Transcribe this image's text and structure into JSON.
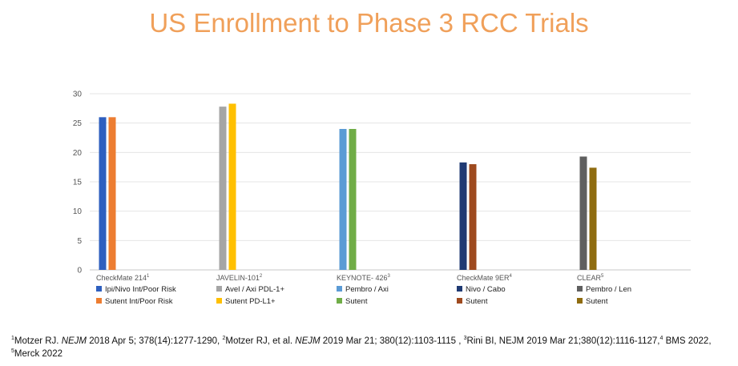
{
  "title": "US Enrollment to Phase 3 RCC Trials",
  "chart_data": {
    "type": "bar",
    "ylim": [
      0,
      30
    ],
    "yticks": [
      0,
      5,
      10,
      15,
      20,
      25,
      30
    ],
    "grid": true,
    "categories": [
      {
        "name": "CheckMate 214",
        "sup": "1"
      },
      {
        "name": "JAVELIN-101",
        "sup": "2"
      },
      {
        "name": "KEYNOTE- 426",
        "sup": "3"
      },
      {
        "name": "CheckMate 9ER",
        "sup": "4"
      },
      {
        "name": "CLEAR",
        "sup": "5"
      }
    ],
    "groups": [
      {
        "bars": [
          {
            "label": "Ipi/Nivo   Int/Poor Risk",
            "value": 26,
            "color": "#2e5fbf"
          },
          {
            "label": "Sutent   Int/Poor Risk",
            "value": 26,
            "color": "#ed7d31"
          }
        ]
      },
      {
        "bars": [
          {
            "label": "Avel / Axi   PDL-1+",
            "value": 27.8,
            "color": "#a5a5a5"
          },
          {
            "label": "Sutent      PD-L1+",
            "value": 28.3,
            "color": "#ffc000"
          }
        ]
      },
      {
        "bars": [
          {
            "label": "Pembro / Axi",
            "value": 24,
            "color": "#5b9bd5"
          },
          {
            "label": "Sutent",
            "value": 24,
            "color": "#70ad47"
          }
        ]
      },
      {
        "bars": [
          {
            "label": "Nivo / Cabo",
            "value": 18.3,
            "color": "#1f3a73"
          },
          {
            "label": "Sutent",
            "value": 18,
            "color": "#9e4a1f"
          }
        ]
      },
      {
        "bars": [
          {
            "label": "Pembro / Len",
            "value": 19.3,
            "color": "#5f5f5f"
          },
          {
            "label": "Sutent",
            "value": 17.4,
            "color": "#8f6c10"
          }
        ]
      }
    ]
  },
  "footnote": [
    {
      "t": "1",
      "sup": true
    },
    {
      "t": "Motzer RJ. "
    },
    {
      "t": "NEJM",
      "it": true
    },
    {
      "t": " 2018 Apr 5; 378(14):1277-1290, "
    },
    {
      "t": "2",
      "sup": true
    },
    {
      "t": "Motzer RJ, et al. "
    },
    {
      "t": "NEJM",
      "it": true
    },
    {
      "t": " 2019 Mar 21; 380(12):1103-1115 , "
    },
    {
      "t": "3",
      "sup": true
    },
    {
      "t": "Rini BI, NEJM 2019 Mar 21;380(12):1116-1127,"
    },
    {
      "t": "4",
      "sup": true
    },
    {
      "t": " BMS 2022, "
    },
    {
      "t": "5",
      "sup": true
    },
    {
      "t": "Merck 2022"
    }
  ]
}
